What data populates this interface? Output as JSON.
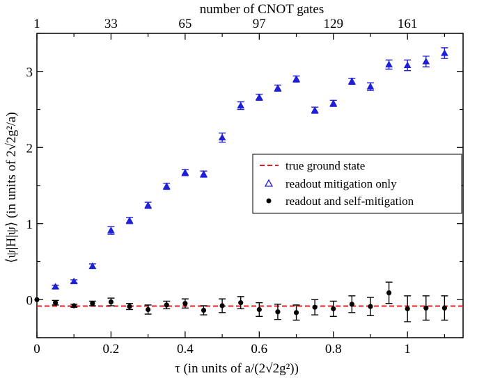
{
  "chart_data": {
    "type": "scatter",
    "title": "",
    "xlabel": "τ   (in units of a/(2√2g²))",
    "ylabel": "⟨ψ|H|ψ⟩   (in units of 2√2g²/a)",
    "top_xlabel": "number of CNOT gates",
    "xlim": [
      0,
      1.15
    ],
    "ylim": [
      -0.5,
      3.5
    ],
    "x_ticks": [
      {
        "value": 0,
        "label": "0"
      },
      {
        "value": 0.2,
        "label": "0.2"
      },
      {
        "value": 0.4,
        "label": "0.4"
      },
      {
        "value": 0.6,
        "label": "0.6"
      },
      {
        "value": 0.8,
        "label": "0.8"
      },
      {
        "value": 1.0,
        "label": "1"
      }
    ],
    "y_ticks": [
      {
        "value": 0,
        "label": "0"
      },
      {
        "value": 1,
        "label": "1"
      },
      {
        "value": 2,
        "label": "2"
      },
      {
        "value": 3,
        "label": "3"
      }
    ],
    "top_ticks": [
      {
        "value": 0,
        "label": "1"
      },
      {
        "value": 0.2,
        "label": "33"
      },
      {
        "value": 0.4,
        "label": "65"
      },
      {
        "value": 0.6,
        "label": "97"
      },
      {
        "value": 0.8,
        "label": "129"
      },
      {
        "value": 1.0,
        "label": "161"
      }
    ],
    "reference_line": {
      "name": "true ground state",
      "y": -0.085,
      "color": "#e41a1c"
    },
    "legend": {
      "position": "center-right"
    },
    "series": [
      {
        "name": "readout mitigation only",
        "marker": "triangle",
        "color": "#1f1fd6",
        "x": [
          0.05,
          0.1,
          0.15,
          0.2,
          0.25,
          0.3,
          0.35,
          0.4,
          0.45,
          0.5,
          0.55,
          0.6,
          0.65,
          0.7,
          0.75,
          0.8,
          0.85,
          0.9,
          0.95,
          1.0,
          1.05,
          1.1
        ],
        "y": [
          0.17,
          0.24,
          0.44,
          0.91,
          1.04,
          1.24,
          1.49,
          1.67,
          1.65,
          2.13,
          2.55,
          2.66,
          2.78,
          2.9,
          2.49,
          2.58,
          2.87,
          2.8,
          3.09,
          3.08,
          3.13,
          3.24
        ],
        "err": [
          0.02,
          0.02,
          0.03,
          0.05,
          0.04,
          0.04,
          0.04,
          0.04,
          0.04,
          0.06,
          0.05,
          0.04,
          0.04,
          0.04,
          0.04,
          0.04,
          0.04,
          0.05,
          0.06,
          0.07,
          0.07,
          0.07
        ]
      },
      {
        "name": "readout and self-mitigation",
        "marker": "circle",
        "color": "#000000",
        "x": [
          0,
          0.05,
          0.1,
          0.15,
          0.2,
          0.25,
          0.3,
          0.35,
          0.4,
          0.45,
          0.5,
          0.55,
          0.6,
          0.65,
          0.7,
          0.75,
          0.8,
          0.85,
          0.9,
          0.95,
          1.0,
          1.05,
          1.1
        ],
        "y": [
          0.0,
          -0.04,
          -0.08,
          -0.05,
          -0.03,
          -0.09,
          -0.13,
          -0.07,
          -0.05,
          -0.14,
          -0.08,
          -0.04,
          -0.13,
          -0.16,
          -0.17,
          -0.1,
          -0.12,
          -0.06,
          -0.09,
          0.09,
          -0.12,
          -0.11,
          -0.11
        ],
        "err": [
          0.0,
          0.03,
          0.02,
          0.03,
          0.05,
          0.04,
          0.06,
          0.05,
          0.06,
          0.06,
          0.09,
          0.08,
          0.09,
          0.1,
          0.1,
          0.1,
          0.1,
          0.11,
          0.12,
          0.14,
          0.17,
          0.16,
          0.16
        ]
      }
    ]
  }
}
